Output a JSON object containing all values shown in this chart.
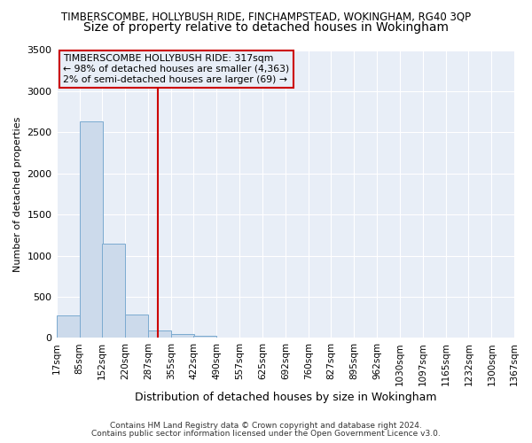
{
  "title_line1": "TIMBERSCOMBE, HOLLYBUSH RIDE, FINCHAMPSTEAD, WOKINGHAM, RG40 3QP",
  "title_line2": "Size of property relative to detached houses in Wokingham",
  "xlabel": "Distribution of detached houses by size in Wokingham",
  "ylabel": "Number of detached properties",
  "bar_color": "#ccdaeb",
  "bar_edge_color": "#7baad0",
  "vline_value": 317,
  "vline_color": "#cc0000",
  "annotation_lines": [
    "TIMBERSCOMBE HOLLYBUSH RIDE: 317sqm",
    "← 98% of detached houses are smaller (4,363)",
    "2% of semi-detached houses are larger (69) →"
  ],
  "annotation_box_color": "#cc0000",
  "ylim": [
    0,
    3500
  ],
  "yticks": [
    0,
    500,
    1000,
    1500,
    2000,
    2500,
    3000,
    3500
  ],
  "bin_edges": [
    17,
    85,
    152,
    220,
    287,
    355,
    422,
    490,
    557,
    625,
    692,
    760,
    827,
    895,
    962,
    1030,
    1097,
    1165,
    1232,
    1300,
    1367
  ],
  "bin_labels": [
    "17sqm",
    "85sqm",
    "152sqm",
    "220sqm",
    "287sqm",
    "355sqm",
    "422sqm",
    "490sqm",
    "557sqm",
    "625sqm",
    "692sqm",
    "760sqm",
    "827sqm",
    "895sqm",
    "962sqm",
    "1030sqm",
    "1097sqm",
    "1165sqm",
    "1232sqm",
    "1300sqm",
    "1367sqm"
  ],
  "bar_heights": [
    270,
    2630,
    1150,
    285,
    90,
    50,
    30,
    0,
    0,
    0,
    0,
    0,
    0,
    0,
    0,
    0,
    0,
    0,
    0,
    0
  ],
  "footer_line1": "Contains HM Land Registry data © Crown copyright and database right 2024.",
  "footer_line2": "Contains public sector information licensed under the Open Government Licence v3.0.",
  "plot_bg_color": "#e8eef7",
  "fig_bg_color": "#ffffff",
  "grid_color": "#ffffff",
  "title1_fontsize": 8.5,
  "title2_fontsize": 10,
  "ylabel_fontsize": 8,
  "xlabel_fontsize": 9,
  "tick_fontsize": 7.5,
  "footer_fontsize": 6.5,
  "annot_fontsize": 7.8
}
